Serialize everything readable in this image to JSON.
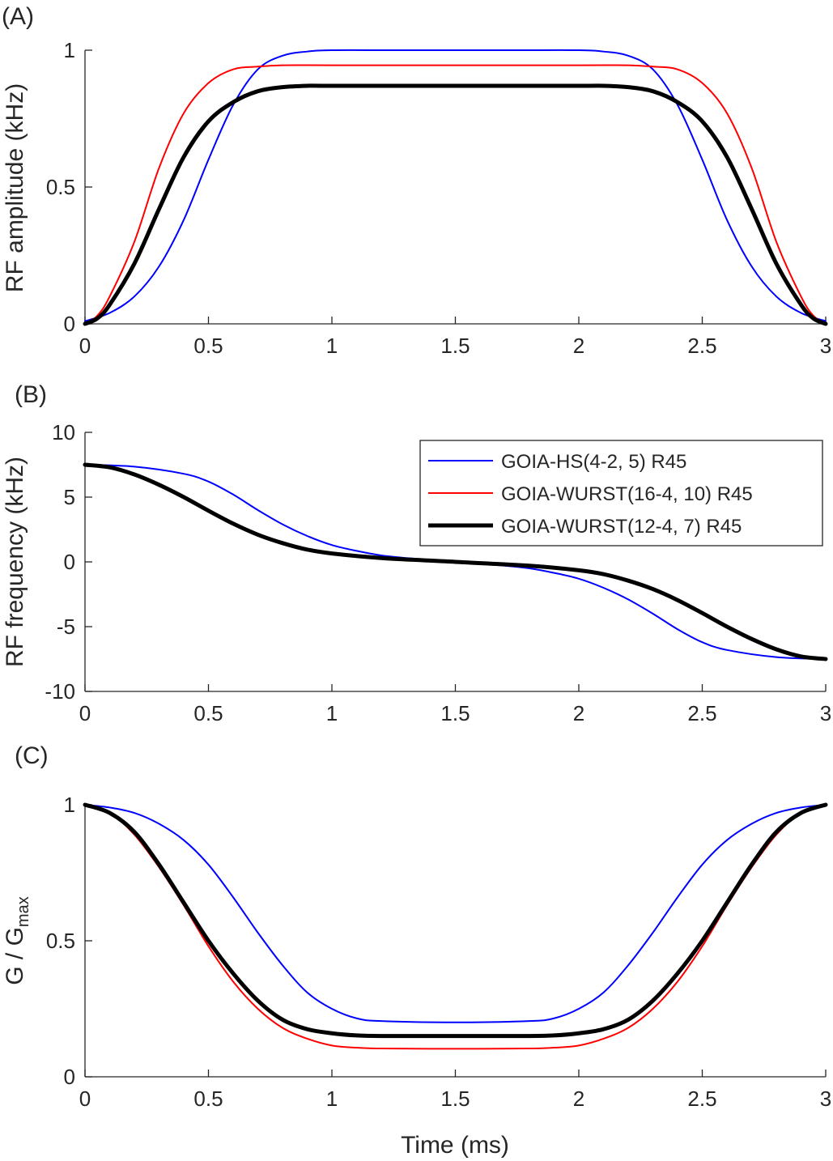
{
  "chart_data": [
    {
      "type": "line",
      "panel_label": "(A)",
      "xlabel": "",
      "ylabel": "RF amplitude (kHz)",
      "xlim": [
        0,
        3
      ],
      "ylim": [
        0,
        1
      ],
      "xticks": [
        "0",
        "0.5",
        "1",
        "1.5",
        "2",
        "2.5",
        "3"
      ],
      "yticks": [
        "0",
        "0.5",
        "1"
      ],
      "grid": false,
      "series": [
        {
          "name": "GOIA-HS(4-2, 5) R45",
          "color": "#0000ff",
          "width": "thin",
          "x": [
            0,
            0.1,
            0.2,
            0.3,
            0.4,
            0.5,
            0.6,
            0.7,
            0.8,
            0.9,
            1.0,
            1.25,
            1.5,
            1.75,
            2.0,
            2.1,
            2.2,
            2.3,
            2.4,
            2.5,
            2.6,
            2.7,
            2.8,
            2.9,
            3.0
          ],
          "y": [
            0.01,
            0.04,
            0.1,
            0.21,
            0.38,
            0.6,
            0.8,
            0.93,
            0.98,
            0.995,
            1.0,
            1.0,
            1.0,
            1.0,
            1.0,
            0.995,
            0.98,
            0.93,
            0.8,
            0.6,
            0.38,
            0.21,
            0.1,
            0.04,
            0.01
          ]
        },
        {
          "name": "GOIA-WURST(16-4, 10) R45",
          "color": "#ff0000",
          "width": "thin",
          "x": [
            0,
            0.05,
            0.1,
            0.2,
            0.3,
            0.4,
            0.5,
            0.6,
            0.7,
            0.8,
            1.0,
            1.5,
            2.0,
            2.2,
            2.3,
            2.4,
            2.5,
            2.6,
            2.7,
            2.8,
            2.9,
            2.95,
            3.0
          ],
          "y": [
            0,
            0.03,
            0.1,
            0.3,
            0.57,
            0.77,
            0.88,
            0.93,
            0.94,
            0.945,
            0.945,
            0.945,
            0.945,
            0.945,
            0.94,
            0.93,
            0.88,
            0.77,
            0.57,
            0.3,
            0.1,
            0.03,
            0
          ]
        },
        {
          "name": "GOIA-WURST(12-4, 7) R45",
          "color": "#000000",
          "width": "thick",
          "x": [
            0,
            0.05,
            0.1,
            0.2,
            0.3,
            0.4,
            0.5,
            0.6,
            0.7,
            0.8,
            0.9,
            1.0,
            1.5,
            2.0,
            2.1,
            2.2,
            2.3,
            2.4,
            2.5,
            2.6,
            2.7,
            2.8,
            2.9,
            2.95,
            3.0
          ],
          "y": [
            0,
            0.02,
            0.07,
            0.22,
            0.42,
            0.61,
            0.74,
            0.81,
            0.85,
            0.865,
            0.87,
            0.87,
            0.87,
            0.87,
            0.87,
            0.865,
            0.85,
            0.81,
            0.74,
            0.61,
            0.42,
            0.22,
            0.07,
            0.02,
            0
          ]
        }
      ]
    },
    {
      "type": "line",
      "panel_label": "(B)",
      "xlabel": "",
      "ylabel": "RF frequency (kHz)",
      "xlim": [
        0,
        3
      ],
      "ylim": [
        -10,
        10
      ],
      "xticks": [
        "0",
        "0.5",
        "1",
        "1.5",
        "2",
        "2.5",
        "3"
      ],
      "yticks": [
        "-10",
        "-5",
        "0",
        "5",
        "10"
      ],
      "grid": false,
      "legend": {
        "position": "top-right",
        "entries": [
          "GOIA-HS(4-2, 5) R45",
          "GOIA-WURST(16-4, 10) R45",
          "GOIA-WURST(12-4, 7) R45"
        ]
      },
      "series": [
        {
          "name": "GOIA-HS(4-2, 5) R45",
          "color": "#0000ff",
          "width": "thin",
          "x": [
            0,
            0.2,
            0.4,
            0.5,
            0.6,
            0.7,
            0.8,
            0.9,
            1.0,
            1.1,
            1.2,
            1.3,
            1.5,
            1.7,
            1.8,
            1.9,
            2.0,
            2.1,
            2.2,
            2.3,
            2.4,
            2.5,
            2.6,
            2.8,
            3.0
          ],
          "y": [
            7.5,
            7.35,
            6.8,
            6.2,
            5.2,
            4.0,
            2.9,
            2.0,
            1.3,
            0.85,
            0.5,
            0.3,
            0,
            -0.3,
            -0.5,
            -0.85,
            -1.3,
            -2.0,
            -2.9,
            -4.0,
            -5.2,
            -6.2,
            -6.8,
            -7.35,
            -7.5
          ]
        },
        {
          "name": "GOIA-WURST(16-4, 10) R45",
          "color": "#ff0000",
          "width": "thin",
          "x": [
            0,
            0.1,
            0.2,
            0.3,
            0.4,
            0.5,
            0.6,
            0.7,
            0.8,
            0.9,
            1.0,
            1.2,
            1.5,
            1.8,
            2.0,
            2.1,
            2.2,
            2.3,
            2.4,
            2.5,
            2.6,
            2.7,
            2.8,
            2.9,
            3.0
          ],
          "y": [
            7.5,
            7.3,
            6.8,
            6.0,
            5.0,
            4.0,
            3.0,
            2.1,
            1.5,
            1.0,
            0.7,
            0.3,
            0,
            -0.3,
            -0.7,
            -1.0,
            -1.5,
            -2.1,
            -3.0,
            -4.0,
            -5.0,
            -6.0,
            -6.8,
            -7.3,
            -7.5
          ]
        },
        {
          "name": "GOIA-WURST(12-4, 7) R45",
          "color": "#000000",
          "width": "thick",
          "x": [
            0,
            0.1,
            0.2,
            0.3,
            0.4,
            0.5,
            0.6,
            0.7,
            0.8,
            0.9,
            1.0,
            1.2,
            1.5,
            1.8,
            2.0,
            2.1,
            2.2,
            2.3,
            2.4,
            2.5,
            2.6,
            2.7,
            2.8,
            2.9,
            3.0
          ],
          "y": [
            7.5,
            7.3,
            6.75,
            5.95,
            5.0,
            3.95,
            2.95,
            2.1,
            1.45,
            0.95,
            0.65,
            0.3,
            0,
            -0.3,
            -0.65,
            -0.95,
            -1.45,
            -2.1,
            -2.95,
            -3.95,
            -5.0,
            -5.95,
            -6.75,
            -7.3,
            -7.5
          ]
        }
      ]
    },
    {
      "type": "line",
      "panel_label": "(C)",
      "xlabel": "Time (ms)",
      "ylabel_main": "G / G",
      "ylabel_sub": "max",
      "xlim": [
        0,
        3
      ],
      "ylim": [
        0,
        1
      ],
      "xticks": [
        "0",
        "0.5",
        "1",
        "1.5",
        "2",
        "2.5",
        "3"
      ],
      "yticks": [
        "0",
        "0.5",
        "1"
      ],
      "grid": false,
      "series": [
        {
          "name": "GOIA-HS(4-2, 5) R45",
          "color": "#0000ff",
          "width": "thin",
          "x": [
            0,
            0.1,
            0.2,
            0.3,
            0.4,
            0.5,
            0.6,
            0.7,
            0.8,
            0.9,
            1.0,
            1.1,
            1.2,
            1.5,
            1.8,
            1.9,
            2.0,
            2.1,
            2.2,
            2.3,
            2.4,
            2.5,
            2.6,
            2.7,
            2.8,
            2.9,
            3.0
          ],
          "y": [
            1.0,
            0.99,
            0.97,
            0.93,
            0.87,
            0.78,
            0.66,
            0.53,
            0.41,
            0.31,
            0.25,
            0.215,
            0.205,
            0.2,
            0.205,
            0.215,
            0.25,
            0.31,
            0.41,
            0.53,
            0.66,
            0.78,
            0.87,
            0.93,
            0.97,
            0.99,
            1.0
          ]
        },
        {
          "name": "GOIA-WURST(16-4, 10) R45",
          "color": "#ff0000",
          "width": "thin",
          "x": [
            0,
            0.1,
            0.2,
            0.3,
            0.4,
            0.5,
            0.6,
            0.7,
            0.8,
            0.9,
            1.0,
            1.1,
            1.2,
            1.5,
            1.8,
            1.9,
            2.0,
            2.1,
            2.2,
            2.3,
            2.4,
            2.5,
            2.6,
            2.7,
            2.8,
            2.9,
            3.0
          ],
          "y": [
            1.0,
            0.97,
            0.89,
            0.77,
            0.63,
            0.48,
            0.35,
            0.25,
            0.18,
            0.14,
            0.115,
            0.107,
            0.104,
            0.103,
            0.104,
            0.107,
            0.115,
            0.14,
            0.18,
            0.25,
            0.35,
            0.48,
            0.63,
            0.77,
            0.89,
            0.97,
            1.0
          ]
        },
        {
          "name": "GOIA-WURST(12-4, 7) R45",
          "color": "#000000",
          "width": "thick",
          "x": [
            0,
            0.1,
            0.2,
            0.3,
            0.4,
            0.5,
            0.6,
            0.7,
            0.8,
            0.9,
            1.0,
            1.1,
            1.2,
            1.5,
            1.8,
            1.9,
            2.0,
            2.1,
            2.2,
            2.3,
            2.4,
            2.5,
            2.6,
            2.7,
            2.8,
            2.9,
            3.0
          ],
          "y": [
            1.0,
            0.97,
            0.9,
            0.78,
            0.64,
            0.5,
            0.38,
            0.28,
            0.21,
            0.175,
            0.16,
            0.152,
            0.15,
            0.15,
            0.15,
            0.152,
            0.16,
            0.175,
            0.21,
            0.28,
            0.38,
            0.5,
            0.64,
            0.78,
            0.9,
            0.97,
            1.0
          ]
        }
      ]
    }
  ]
}
